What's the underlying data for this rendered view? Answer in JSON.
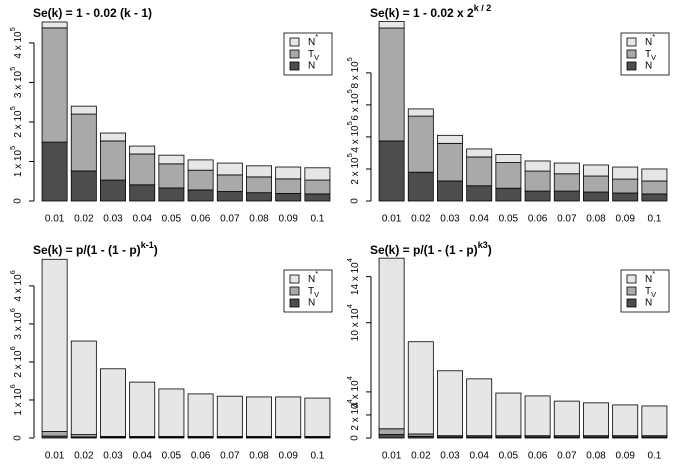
{
  "chart_data": [
    {
      "type": "bar",
      "stacked": true,
      "title": "Se(k) = 1 - 0.02 (k - 1)",
      "categories": [
        "0.01",
        "0.02",
        "0.03",
        "0.04",
        "0.05",
        "0.06",
        "0.07",
        "0.08",
        "0.09",
        "0.1"
      ],
      "series": [
        {
          "name": "N",
          "color": "#4d4d4d",
          "values": [
            149000,
            76000,
            53000,
            41000,
            33000,
            28000,
            24000,
            21000,
            19000,
            18000
          ]
        },
        {
          "name": [
            {
              "text": "T"
            },
            {
              "text": "V",
              "sub": true
            }
          ],
          "color": "#a9a9a9",
          "values": [
            289000,
            144000,
            99000,
            78000,
            61000,
            50000,
            42000,
            40000,
            37000,
            35000
          ]
        },
        {
          "name": [
            {
              "text": "N"
            },
            {
              "text": "*",
              "sup": true
            }
          ],
          "color": "#e6e6e6",
          "values": [
            15000,
            20000,
            20000,
            20000,
            22000,
            26000,
            30000,
            28000,
            30000,
            31000
          ]
        }
      ],
      "ylim": [
        0,
        458000
      ],
      "yticks": [
        0,
        {
          "value": 100000,
          "label": [
            {
              "text": "1 x 10"
            },
            {
              "text": "5",
              "sup": true
            }
          ]
        },
        {
          "value": 200000,
          "label": [
            {
              "text": "2 x 10"
            },
            {
              "text": "5",
              "sup": true
            }
          ]
        },
        {
          "value": 300000,
          "label": [
            {
              "text": "3 x 10"
            },
            {
              "text": "5",
              "sup": true
            }
          ]
        },
        {
          "value": 400000,
          "label": [
            {
              "text": "4 x 10"
            },
            {
              "text": "5",
              "sup": true
            }
          ]
        }
      ],
      "legend": "top-right"
    },
    {
      "type": "bar",
      "stacked": true,
      "title": [
        {
          "text": "Se(k) = 1 - 0.02 x 2"
        },
        {
          "text": "k / 2",
          "sup": true
        }
      ],
      "categories": [
        "0.01",
        "0.02",
        "0.03",
        "0.04",
        "0.05",
        "0.06",
        "0.07",
        "0.08",
        "0.09",
        "0.1"
      ],
      "series": [
        {
          "name": "N",
          "color": "#4d4d4d",
          "values": [
            375000,
            180000,
            125000,
            95000,
            80000,
            62000,
            62000,
            56000,
            50000,
            44000
          ]
        },
        {
          "name": [
            {
              "text": "T"
            },
            {
              "text": "V",
              "sub": true
            }
          ],
          "color": "#a9a9a9",
          "values": [
            705000,
            350000,
            235000,
            180000,
            160000,
            125000,
            108000,
            100000,
            87000,
            81000
          ]
        },
        {
          "name": [
            {
              "text": "N"
            },
            {
              "text": "*",
              "sup": true
            }
          ],
          "color": "#e6e6e6",
          "values": [
            40000,
            45000,
            50000,
            50000,
            50000,
            63000,
            67000,
            69000,
            75000,
            75000
          ]
        }
      ],
      "ylim": [
        0,
        1130000
      ],
      "yticks": [
        0,
        {
          "value": 200000,
          "label": [
            {
              "text": "2 x 10"
            },
            {
              "text": "5",
              "sup": true
            }
          ]
        },
        {
          "value": 400000,
          "label": [
            {
              "text": "4 x 10"
            },
            {
              "text": "5",
              "sup": true
            }
          ]
        },
        {
          "value": 600000,
          "label": [
            {
              "text": "6 x 10"
            },
            {
              "text": "5",
              "sup": true
            }
          ]
        },
        {
          "value": 800000,
          "label": [
            {
              "text": "8 x 10"
            },
            {
              "text": "5",
              "sup": true
            }
          ]
        }
      ],
      "legend": "top-right"
    },
    {
      "type": "bar",
      "stacked": true,
      "title": [
        {
          "text": "Se(k) = p/(1 - (1 - p)"
        },
        {
          "text": "k-1",
          "sup": true
        },
        {
          "text": ")"
        }
      ],
      "categories": [
        "0.01",
        "0.02",
        "0.03",
        "0.04",
        "0.05",
        "0.06",
        "0.07",
        "0.08",
        "0.09",
        "0.1"
      ],
      "series": [
        {
          "name": "N",
          "color": "#4d4d4d",
          "values": [
            50000,
            30000,
            20000,
            20000,
            20000,
            20000,
            20000,
            20000,
            20000,
            20000
          ]
        },
        {
          "name": [
            {
              "text": "T"
            },
            {
              "text": "V",
              "sub": true
            }
          ],
          "color": "#a9a9a9",
          "values": [
            120000,
            60000,
            20000,
            20000,
            20000,
            20000,
            20000,
            20000,
            20000,
            20000
          ]
        },
        {
          "name": [
            {
              "text": "N"
            },
            {
              "text": "*",
              "sup": true
            }
          ],
          "color": "#e6e6e6",
          "values": [
            4530000,
            2460000,
            1780000,
            1430000,
            1250000,
            1120000,
            1060000,
            1040000,
            1040000,
            1010000
          ]
        }
      ],
      "ylim": [
        0,
        4760000
      ],
      "yticks": [
        0,
        {
          "value": 1000000,
          "label": [
            {
              "text": "1 x 10"
            },
            {
              "text": "6",
              "sup": true
            }
          ]
        },
        {
          "value": 2000000,
          "label": [
            {
              "text": "2 x 10"
            },
            {
              "text": "6",
              "sup": true
            }
          ]
        },
        {
          "value": 3000000,
          "label": [
            {
              "text": "3 x 10"
            },
            {
              "text": "6",
              "sup": true
            }
          ]
        },
        {
          "value": 4000000,
          "label": [
            {
              "text": "4 x 10"
            },
            {
              "text": "6",
              "sup": true
            }
          ]
        }
      ],
      "legend": "top-right"
    },
    {
      "type": "bar",
      "stacked": true,
      "title": [
        {
          "text": "Se(k) = p/(1 - (1 - p)"
        },
        {
          "text": "k",
          "sup": true
        },
        {
          "text": "3",
          "sup": true
        },
        {
          "text": ")"
        }
      ],
      "categories": [
        "0.01",
        "0.02",
        "0.03",
        "0.04",
        "0.05",
        "0.06",
        "0.07",
        "0.08",
        "0.09",
        "0.1"
      ],
      "series": [
        {
          "name": "N",
          "color": "#4d4d4d",
          "values": [
            3000,
            1500,
            1000,
            1000,
            1000,
            1000,
            1000,
            1000,
            1000,
            1000
          ]
        },
        {
          "name": [
            {
              "text": "T"
            },
            {
              "text": "V",
              "sub": true
            }
          ],
          "color": "#a9a9a9",
          "values": [
            5000,
            2000,
            1000,
            1000,
            1000,
            1000,
            1000,
            1000,
            1000,
            1000
          ]
        },
        {
          "name": [
            {
              "text": "N"
            },
            {
              "text": "*",
              "sup": true
            }
          ],
          "color": "#e6e6e6",
          "values": [
            148000,
            80000,
            56300,
            49300,
            37000,
            34500,
            30000,
            28500,
            26700,
            25800
          ]
        }
      ],
      "ylim": [
        0,
        157000
      ],
      "yticks": [
        0,
        {
          "value": 20000,
          "label": [
            {
              "text": "2 x 10"
            },
            {
              "text": "4",
              "sup": true
            }
          ]
        },
        {
          "value": 40000,
          "label": [
            {
              "text": "4 x 10"
            },
            {
              "text": "4",
              "sup": true
            }
          ]
        },
        {
          "value": 100000,
          "label": [
            {
              "text": "10 x 10"
            },
            {
              "text": "4",
              "sup": true
            }
          ]
        },
        {
          "value": 140000,
          "label": [
            {
              "text": "14 x 10"
            },
            {
              "text": "4",
              "sup": true
            }
          ]
        }
      ],
      "legend": "top-right"
    }
  ]
}
